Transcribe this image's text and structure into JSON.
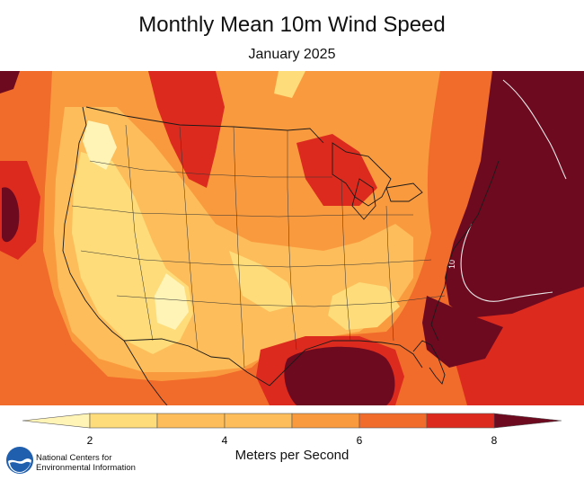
{
  "header": {
    "title": "Monthly Mean 10m Wind Speed",
    "subtitle": "January 2025"
  },
  "map": {
    "contour_label": "10",
    "color_scale": [
      "#fff3b5",
      "#fddc79",
      "#fdbd5a",
      "#fa9a3e",
      "#f16b2b",
      "#dc2b1e",
      "#6e0a1f"
    ]
  },
  "legend": {
    "ticks": [
      "2",
      "4",
      "6",
      "8"
    ],
    "units_label": "Meters per Second"
  },
  "credit": {
    "line1": "National Centers for",
    "line2": "Environmental Information"
  }
}
